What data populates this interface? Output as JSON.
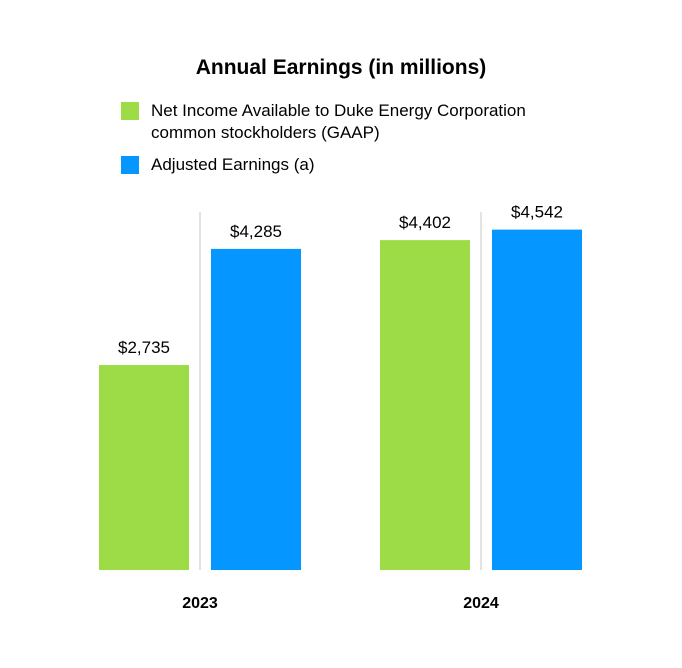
{
  "chart_data": {
    "type": "bar",
    "title": "Annual Earnings (in millions)",
    "categories": [
      "2023",
      "2024"
    ],
    "series": [
      {
        "name": "Net Income Available to Duke Energy Corporation common stockholders (GAAP)",
        "legend_line1": "Net Income Available to Duke Energy Corporation",
        "legend_line2": "common stockholders (GAAP)",
        "color": "#9ddc46",
        "values": [
          2735,
          4402
        ],
        "labels": [
          "$2,735",
          "$4,402"
        ]
      },
      {
        "name": "Adjusted Earnings (a)",
        "color": "#0596ff",
        "values": [
          4285,
          4542
        ],
        "labels": [
          "$4,285",
          "$4,542"
        ]
      }
    ],
    "xlabel": "",
    "ylabel": "",
    "ylim": [
      0,
      4750
    ],
    "grid": false,
    "legend_position": "top-left"
  }
}
